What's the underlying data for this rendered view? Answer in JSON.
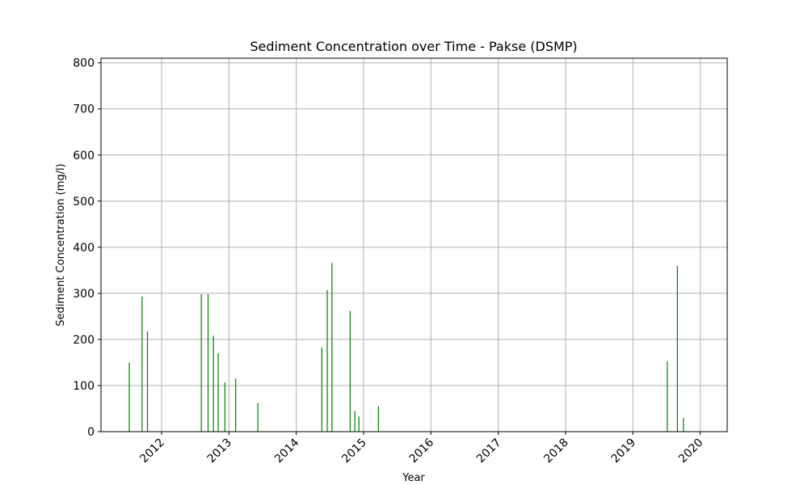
{
  "chart_data": {
    "type": "bar",
    "title": "Sediment Concentration over Time - Pakse (DSMP)",
    "xlabel": "Year",
    "ylabel": "Sediment Concentration (mg/l)",
    "x_tick_labels": [
      "2012",
      "2013",
      "2014",
      "2015",
      "2016",
      "2017",
      "2018",
      "2019",
      "2020"
    ],
    "x_tick_values": [
      2012,
      2013,
      2014,
      2015,
      2016,
      2017,
      2018,
      2019,
      2020
    ],
    "y_tick_labels": [
      "0",
      "100",
      "200",
      "300",
      "400",
      "500",
      "600",
      "700",
      "800"
    ],
    "y_tick_values": [
      0,
      100,
      200,
      300,
      400,
      500,
      600,
      700,
      800
    ],
    "xlim": [
      2011.1,
      2020.4
    ],
    "ylim": [
      0,
      810
    ],
    "grid": true,
    "bar_color": "#008000",
    "series": [
      {
        "x": [
          2011.52,
          2011.71,
          2011.79,
          2012.59,
          2012.69,
          2012.77,
          2012.84,
          2012.94,
          2013.1,
          2013.43,
          2014.38,
          2014.46,
          2014.53,
          2014.8,
          2014.87,
          2014.93,
          2015.22,
          2019.51,
          2019.66,
          2019.75
        ],
        "values": [
          150,
          293,
          218,
          298,
          298,
          208,
          170,
          107,
          115,
          62,
          182,
          307,
          366,
          262,
          45,
          33,
          55,
          153,
          360,
          30
        ]
      }
    ]
  }
}
